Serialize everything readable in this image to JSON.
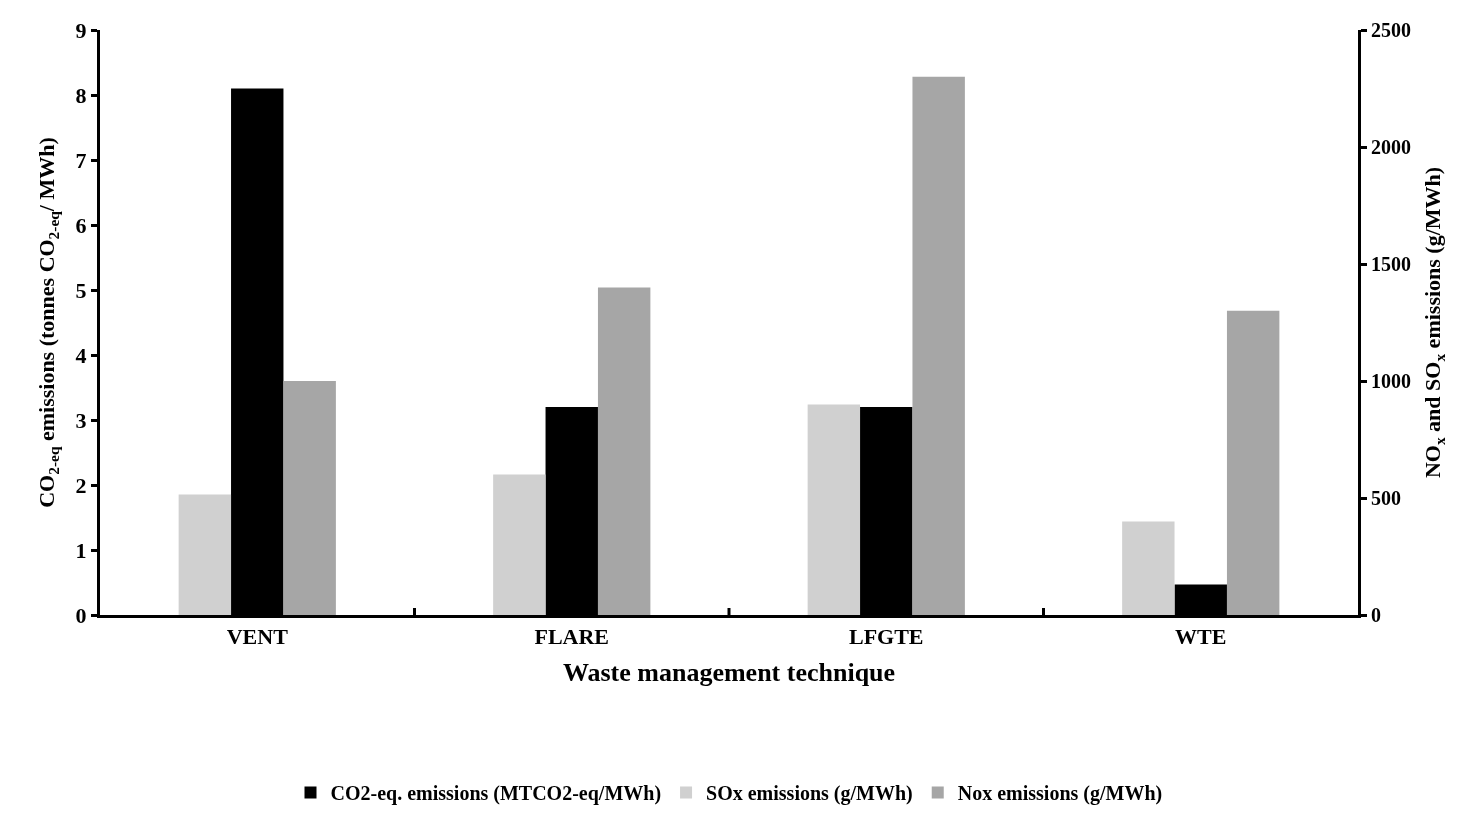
{
  "chart_data": {
    "type": "bar",
    "xlabel": "Waste management technique",
    "ylabel": "CO$_{2-eq}$ emissions (tonnes CO$_{2-eq}$/ MWh)",
    "y2label": "NO$_{x}$ and SO$_{x}$ emissions (g/MWh)",
    "categories": [
      "VENT",
      "FLARE",
      "LFGTE",
      "WTE"
    ],
    "series": [
      {
        "name": "SOx emissions (g/MWh)",
        "color": "#d0d0d0",
        "axis": "y2",
        "values": [
          515,
          600,
          900,
          400
        ]
      },
      {
        "name": "CO2-eq. emissions (MTCO2-eq/MWh)",
        "color": "#000000",
        "axis": "y",
        "values": [
          8.1,
          3.2,
          3.2,
          0.47
        ]
      },
      {
        "name": "Nox emissions (g/MWh)",
        "color": "#a6a6a6",
        "axis": "y2",
        "values": [
          1000,
          1400,
          2300,
          1300
        ]
      }
    ],
    "ylim": [
      0,
      9
    ],
    "yticks": [
      0,
      1,
      2,
      3,
      4,
      5,
      6,
      7,
      8,
      9
    ],
    "y2lim": [
      0,
      2500
    ],
    "y2ticks": [
      0,
      500,
      1000,
      1500,
      2000,
      2500
    ],
    "legend": "bottom"
  }
}
